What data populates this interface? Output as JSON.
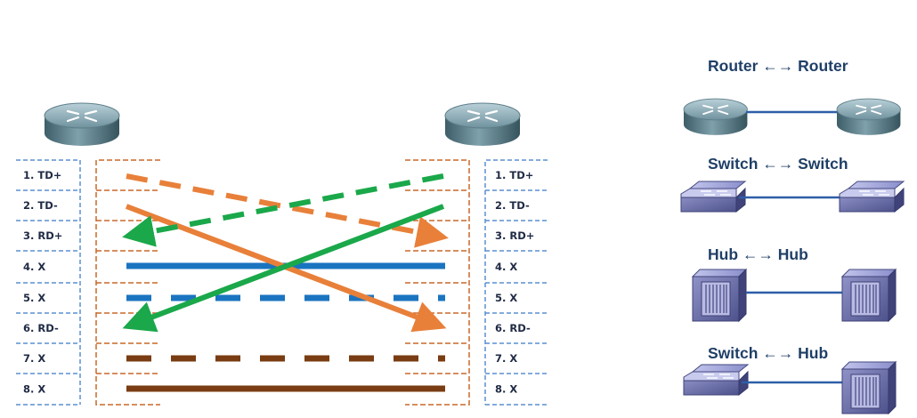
{
  "pins": {
    "left": [
      "1. TD+",
      "2. TD-",
      "3. RD+",
      "4. X",
      "5. X",
      "6. RD-",
      "7. X",
      "8. X"
    ],
    "right": [
      "1. TD+",
      "2. TD-",
      "3. RD+",
      "4. X",
      "5. X",
      "6. RD-",
      "7. X",
      "8. X"
    ]
  },
  "connections": [
    {
      "label": "Router ←→ Router"
    },
    {
      "label": "Switch ←→ Switch"
    },
    {
      "label": "Hub ←→ Hub"
    },
    {
      "label": "Switch ←→ Hub"
    }
  ],
  "colors": {
    "orange": "#e8803a",
    "green": "#1aa84a",
    "blue": "#1b74c0",
    "brown": "#7a3c12",
    "pin_box": "#5b8fd0",
    "connector": "#c8692a",
    "link": "#2e5fa8"
  },
  "icons": [
    "router-icon",
    "switch-icon",
    "hub-icon"
  ]
}
